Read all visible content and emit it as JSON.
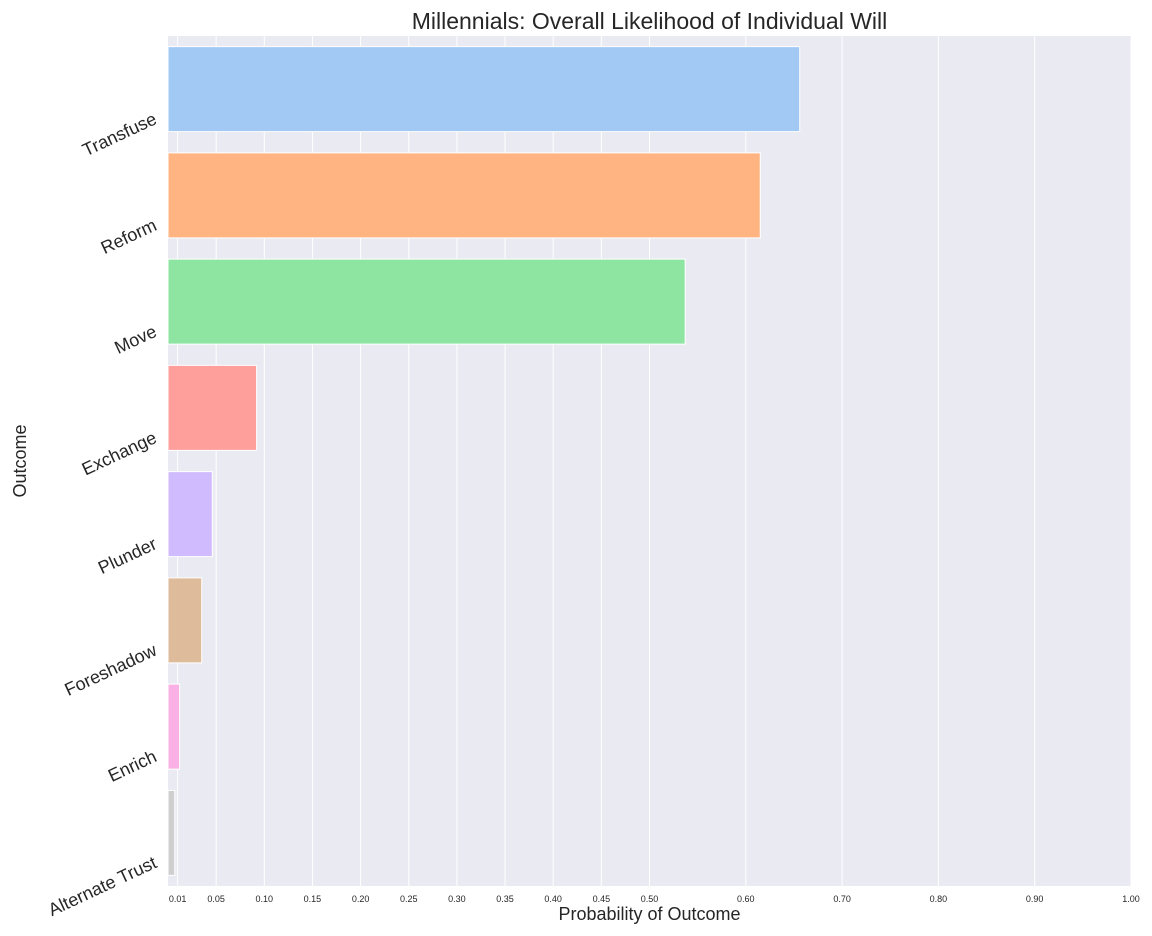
{
  "chart_data": {
    "type": "bar",
    "orientation": "horizontal",
    "title": "Millennials: Overall Likelihood of Individual Will",
    "xlabel": "Probability of Outcome",
    "ylabel": "Outcome",
    "categories": [
      "Transfuse",
      "Reform",
      "Move",
      "Exchange",
      "Plunder",
      "Foreshadow",
      "Enrich",
      "Alternate Trust"
    ],
    "values": [
      0.656,
      0.615,
      0.537,
      0.092,
      0.046,
      0.035,
      0.012,
      0.007
    ],
    "colors": [
      "#a1c9f4",
      "#ffb482",
      "#8de5a1",
      "#ff9f9b",
      "#d0bbff",
      "#debb9b",
      "#fab0e4",
      "#cfcfcf"
    ],
    "xlim": [
      0,
      1.0
    ],
    "xticks": [
      0.01,
      0.05,
      0.1,
      0.15,
      0.2,
      0.25,
      0.3,
      0.35,
      0.4,
      0.45,
      0.5,
      0.6,
      0.7,
      0.8,
      0.9,
      1.0
    ],
    "xtick_labels": [
      "0.01",
      "0.05",
      "0.10",
      "0.15",
      "0.20",
      "0.25",
      "0.30",
      "0.35",
      "0.40",
      "0.45",
      "0.50",
      "0.60",
      "0.70",
      "0.80",
      "0.90",
      "1.00"
    ],
    "grid": true,
    "background": "#eaeaf2",
    "grid_color": "#ffffff"
  }
}
